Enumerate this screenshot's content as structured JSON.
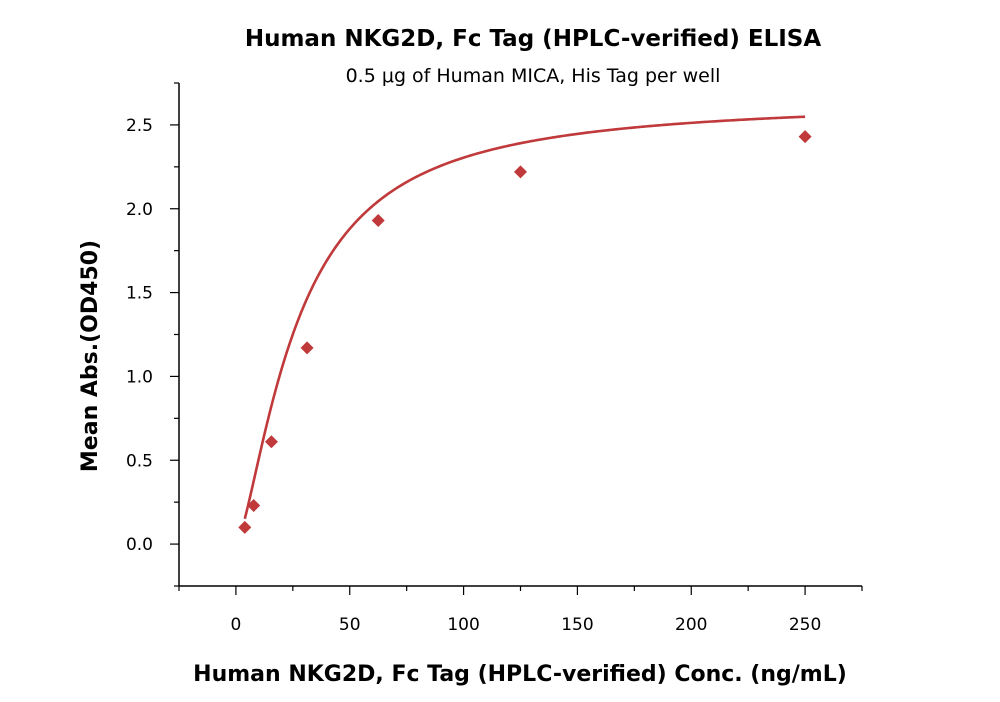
{
  "chart_data": {
    "type": "scatter",
    "title": "Human NKG2D, Fc Tag (HPLC-verified) ELISA",
    "subtitle": "0.5 μg of Human MICA, His Tag per well",
    "xlabel": "Human NKG2D, Fc Tag (HPLC-verified) Conc. (ng/mL)",
    "ylabel": "Mean Abs.(OD450)",
    "xlim": [
      -25,
      275
    ],
    "ylim": [
      -0.25,
      2.75
    ],
    "x_ticks": [
      0,
      50,
      100,
      150,
      200,
      250
    ],
    "x_tick_labels": [
      "0",
      "50",
      "100",
      "150",
      "200",
      "250"
    ],
    "y_ticks": [
      0.0,
      0.5,
      1.0,
      1.5,
      2.0,
      2.5
    ],
    "y_tick_labels": [
      "0.0",
      "0.5",
      "1.0",
      "1.5",
      "2.0",
      "2.5"
    ],
    "grid": false,
    "marker": "diamond",
    "series": [
      {
        "name": "Human NKG2D, Fc Tag (HPLC-verified)",
        "color": "#c0393b",
        "x": [
          3.9,
          7.8,
          15.6,
          31.25,
          62.5,
          125,
          250
        ],
        "y": [
          0.1,
          0.23,
          0.61,
          1.17,
          1.93,
          2.22,
          2.43
        ]
      }
    ],
    "fit_curve": {
      "model": "4PL",
      "color": "#c0393b",
      "bottom": 0.0,
      "top": 2.65,
      "ec50": 27.0,
      "hill": 1.45
    }
  }
}
